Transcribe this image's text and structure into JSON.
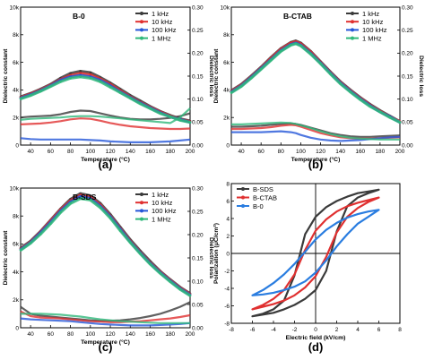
{
  "chart_data": [
    {
      "type": "line",
      "title": "B-0",
      "panel_label": "(a)",
      "xlabel": "Temperature (°C)",
      "ylabel": "Dielectric constant",
      "y2label": "Dielectric loss",
      "xlim": [
        30,
        200
      ],
      "ylim": [
        0,
        10000
      ],
      "y2lim": [
        0,
        0.3
      ],
      "x_ticks": [
        40,
        60,
        80,
        100,
        120,
        140,
        160,
        180,
        200
      ],
      "y_ticks": [
        "0",
        "2k",
        "4k",
        "6k",
        "8k",
        "10k"
      ],
      "y2_ticks": [
        "0.00",
        "0.05",
        "0.10",
        "0.15",
        "0.20",
        "0.25",
        "0.30"
      ],
      "legend_position": "top-right",
      "x": [
        30,
        40,
        50,
        60,
        70,
        80,
        90,
        100,
        110,
        120,
        130,
        140,
        150,
        160,
        170,
        180,
        190,
        200
      ],
      "series": [
        {
          "name": "1 kHz",
          "color": "#3a3a3a",
          "constant": [
            3500,
            3750,
            4050,
            4400,
            4850,
            5200,
            5350,
            5250,
            4900,
            4500,
            4050,
            3600,
            3200,
            2800,
            2450,
            2150,
            1900,
            1750
          ],
          "loss": [
            0.06,
            0.062,
            0.063,
            0.064,
            0.067,
            0.072,
            0.075,
            0.074,
            0.069,
            0.064,
            0.06,
            0.057,
            0.056,
            0.056,
            0.057,
            0.059,
            0.063,
            0.069
          ]
        },
        {
          "name": "10 kHz",
          "color": "#e03030",
          "constant": [
            3450,
            3700,
            4000,
            4350,
            4750,
            5050,
            5200,
            5100,
            4800,
            4400,
            3950,
            3500,
            3100,
            2750,
            2400,
            2100,
            1850,
            1700
          ],
          "loss": [
            0.045,
            0.046,
            0.047,
            0.049,
            0.052,
            0.056,
            0.058,
            0.057,
            0.053,
            0.048,
            0.044,
            0.041,
            0.039,
            0.037,
            0.036,
            0.035,
            0.035,
            0.036
          ]
        },
        {
          "name": "100 kHz",
          "color": "#2456d8",
          "constant": [
            3400,
            3650,
            3950,
            4300,
            4700,
            4950,
            5050,
            4950,
            4700,
            4300,
            3850,
            3450,
            3050,
            2700,
            2350,
            2050,
            1850,
            1650
          ],
          "loss": [
            0.015,
            0.013,
            0.012,
            0.012,
            0.012,
            0.012,
            0.012,
            0.011,
            0.01,
            0.008,
            0.007,
            0.006,
            0.006,
            0.006,
            0.007,
            0.008,
            0.01,
            0.012
          ]
        },
        {
          "name": "1 MHz",
          "color": "#2fb87a",
          "constant": [
            3350,
            3600,
            3900,
            4250,
            4600,
            4850,
            4950,
            4850,
            4600,
            4200,
            3800,
            3400,
            3000,
            2650,
            2300,
            2050,
            1800,
            1650
          ],
          "loss": [
            0.055,
            0.057,
            0.058,
            0.059,
            0.06,
            0.062,
            0.063,
            0.063,
            0.062,
            0.06,
            0.058,
            0.056,
            0.054,
            0.052,
            0.05,
            0.048,
            0.06,
            0.08
          ]
        }
      ]
    },
    {
      "type": "line",
      "title": "B-CTAB",
      "panel_label": "(b)",
      "xlabel": "Temperature (°C)",
      "ylabel": "Dielectric constant",
      "y2label": "Dielectric loss",
      "xlim": [
        30,
        200
      ],
      "ylim": [
        0,
        10000
      ],
      "y2lim": [
        0,
        0.3
      ],
      "x_ticks": [
        40,
        60,
        80,
        100,
        120,
        140,
        160,
        180,
        200
      ],
      "y_ticks": [
        "0",
        "2k",
        "4k",
        "6k",
        "8k",
        "10k"
      ],
      "y2_ticks": [
        "0.00",
        "0.05",
        "0.10",
        "0.15",
        "0.20",
        "0.25",
        "0.30"
      ],
      "legend_position": "top-right",
      "x": [
        30,
        40,
        50,
        60,
        70,
        80,
        90,
        95,
        100,
        110,
        120,
        130,
        140,
        150,
        160,
        170,
        180,
        190,
        200
      ],
      "series": [
        {
          "name": "1 kHz",
          "color": "#3a3a3a",
          "constant": [
            3950,
            4400,
            5000,
            5650,
            6350,
            7000,
            7450,
            7550,
            7400,
            6800,
            6050,
            5300,
            4600,
            4000,
            3450,
            2950,
            2500,
            2100,
            1700
          ],
          "loss": [
            0.04,
            0.04,
            0.041,
            0.042,
            0.044,
            0.046,
            0.047,
            0.046,
            0.044,
            0.038,
            0.032,
            0.026,
            0.022,
            0.019,
            0.018,
            0.018,
            0.019,
            0.02,
            0.021
          ]
        },
        {
          "name": "10 kHz",
          "color": "#e03030",
          "constant": [
            3900,
            4350,
            4950,
            5600,
            6300,
            6950,
            7400,
            7500,
            7350,
            6750,
            6000,
            5250,
            4550,
            3950,
            3400,
            2900,
            2450,
            2050,
            1700
          ],
          "loss": [
            0.035,
            0.035,
            0.036,
            0.037,
            0.039,
            0.042,
            0.044,
            0.043,
            0.04,
            0.033,
            0.026,
            0.021,
            0.017,
            0.015,
            0.014,
            0.014,
            0.015,
            0.016,
            0.017
          ]
        },
        {
          "name": "100 kHz",
          "color": "#2456d8",
          "constant": [
            3850,
            4300,
            4900,
            5550,
            6200,
            6850,
            7300,
            7400,
            7250,
            6650,
            5950,
            5200,
            4500,
            3900,
            3350,
            2850,
            2400,
            2050,
            1650
          ],
          "loss": [
            0.028,
            0.028,
            0.028,
            0.028,
            0.029,
            0.03,
            0.028,
            0.026,
            0.022,
            0.016,
            0.012,
            0.01,
            0.009,
            0.01,
            0.011,
            0.013,
            0.015,
            0.017,
            0.018
          ]
        },
        {
          "name": "1 MHz",
          "color": "#2fb87a",
          "constant": [
            3800,
            4250,
            4850,
            5500,
            6150,
            6800,
            7250,
            7350,
            7200,
            6600,
            5900,
            5150,
            4450,
            3850,
            3300,
            2800,
            2400,
            2000,
            1650
          ],
          "loss": [
            0.045,
            0.045,
            0.046,
            0.047,
            0.048,
            0.049,
            0.048,
            0.046,
            0.043,
            0.037,
            0.03,
            0.024,
            0.019,
            0.016,
            0.014,
            0.013,
            0.012,
            0.012,
            0.012
          ]
        }
      ]
    },
    {
      "type": "line",
      "title": "B-SDS",
      "panel_label": "(c)",
      "xlabel": "Temperature (°C)",
      "ylabel": "Dielectric constant",
      "y2label": "Dielectric loss",
      "xlim": [
        30,
        200
      ],
      "ylim": [
        0,
        10000
      ],
      "y2lim": [
        0,
        0.3
      ],
      "x_ticks": [
        40,
        60,
        80,
        100,
        120,
        140,
        160,
        180,
        200
      ],
      "y_ticks": [
        "0",
        "2k",
        "4k",
        "6k",
        "8k",
        "10k"
      ],
      "y2_ticks": [
        "0.00",
        "0.05",
        "0.10",
        "0.15",
        "0.20",
        "0.25",
        "0.30"
      ],
      "legend_position": "top-right",
      "x": [
        30,
        40,
        50,
        60,
        70,
        80,
        90,
        100,
        110,
        120,
        130,
        140,
        150,
        160,
        170,
        180,
        190,
        200
      ],
      "series": [
        {
          "name": "1 kHz",
          "color": "#3a3a3a",
          "constant": [
            5700,
            6200,
            6900,
            7700,
            8500,
            9200,
            9600,
            9450,
            8900,
            8100,
            7200,
            6300,
            5500,
            4750,
            4050,
            3450,
            2900,
            2450
          ],
          "loss": [
            0.045,
            0.03,
            0.026,
            0.024,
            0.022,
            0.02,
            0.018,
            0.016,
            0.015,
            0.015,
            0.016,
            0.018,
            0.021,
            0.025,
            0.03,
            0.037,
            0.045,
            0.055
          ]
        },
        {
          "name": "10 kHz",
          "color": "#e03030",
          "constant": [
            5650,
            6150,
            6850,
            7650,
            8450,
            9100,
            9500,
            9350,
            8800,
            8000,
            7100,
            6200,
            5400,
            4650,
            4000,
            3400,
            2850,
            2400
          ],
          "loss": [
            0.035,
            0.025,
            0.022,
            0.021,
            0.02,
            0.018,
            0.016,
            0.014,
            0.013,
            0.012,
            0.012,
            0.013,
            0.014,
            0.016,
            0.018,
            0.02,
            0.023,
            0.027
          ]
        },
        {
          "name": "100 kHz",
          "color": "#2456d8",
          "constant": [
            5600,
            6100,
            6800,
            7550,
            8350,
            9000,
            9400,
            9250,
            8700,
            7950,
            7050,
            6150,
            5350,
            4600,
            3950,
            3350,
            2800,
            2350
          ],
          "loss": [
            0.02,
            0.018,
            0.017,
            0.016,
            0.015,
            0.014,
            0.012,
            0.01,
            0.008,
            0.007,
            0.006,
            0.005,
            0.005,
            0.005,
            0.006,
            0.007,
            0.008,
            0.01
          ]
        },
        {
          "name": "1 MHz",
          "color": "#2fb87a",
          "constant": [
            5550,
            6050,
            6700,
            7450,
            8250,
            8900,
            9250,
            9150,
            8600,
            7850,
            6950,
            6100,
            5300,
            4550,
            3900,
            3300,
            2750,
            2300
          ],
          "loss": [
            0.03,
            0.03,
            0.03,
            0.029,
            0.028,
            0.026,
            0.024,
            0.021,
            0.018,
            0.016,
            0.014,
            0.013,
            0.012,
            0.011,
            0.01,
            0.01,
            0.01,
            0.01
          ]
        }
      ]
    },
    {
      "type": "line",
      "panel_label": "(d)",
      "xlabel": "Electric field (kV/cm)",
      "ylabel": "Polarization (μC/cm²)",
      "xlim": [
        -8,
        8
      ],
      "ylim": [
        -8,
        8
      ],
      "x_ticks": [
        -8,
        -6,
        -4,
        -2,
        0,
        2,
        4,
        6,
        8
      ],
      "y_ticks": [
        -8,
        -6,
        -4,
        -2,
        0,
        2,
        4,
        6,
        8
      ],
      "legend_position": "top-left",
      "series": [
        {
          "name": "B-SDS",
          "color": "#3a3a3a",
          "upper": {
            "x": [
              -6,
              -5,
              -4,
              -3,
              -2,
              -1,
              0,
              1,
              2,
              3,
              4,
              5,
              6
            ],
            "y": [
              -7.2,
              -6.9,
              -6.4,
              -5.4,
              -2.5,
              2.2,
              4.2,
              5.3,
              6.0,
              6.5,
              6.9,
              7.1,
              7.3
            ]
          },
          "lower": {
            "x": [
              -6,
              -5,
              -4,
              -3,
              -2,
              -1,
              0,
              1,
              2,
              3,
              4,
              5,
              6
            ],
            "y": [
              -7.2,
              -7.0,
              -6.8,
              -6.4,
              -5.9,
              -5.2,
              -4.2,
              -2.0,
              2.5,
              5.4,
              6.4,
              6.9,
              7.3
            ]
          }
        },
        {
          "name": "B-CTAB",
          "color": "#e03030",
          "upper": {
            "x": [
              -6,
              -5,
              -4,
              -3,
              -2,
              -1,
              0,
              1,
              2,
              3,
              4,
              5,
              6
            ],
            "y": [
              -6.4,
              -5.9,
              -5.2,
              -4.2,
              -2.4,
              0.4,
              2.6,
              3.9,
              4.8,
              5.4,
              5.8,
              6.1,
              6.4
            ]
          },
          "lower": {
            "x": [
              -6,
              -5,
              -4,
              -3,
              -2,
              -1,
              0,
              1,
              2,
              3,
              4,
              5,
              6
            ],
            "y": [
              -6.4,
              -6.1,
              -5.8,
              -5.4,
              -4.8,
              -3.9,
              -2.6,
              -0.4,
              2.4,
              4.2,
              5.2,
              5.9,
              6.4
            ]
          }
        },
        {
          "name": "B-0",
          "color": "#2a7de0",
          "upper": {
            "x": [
              -6,
              -5,
              -4,
              -3,
              -2,
              -1,
              0,
              1,
              2,
              3,
              4,
              5,
              6
            ],
            "y": [
              -4.8,
              -4.2,
              -3.4,
              -2.4,
              -1.2,
              0.2,
              1.6,
              2.7,
              3.5,
              4.1,
              4.5,
              4.8,
              5.0
            ]
          },
          "lower": {
            "x": [
              -6,
              -5,
              -4,
              -3,
              -2,
              -1,
              0,
              1,
              2,
              3,
              4,
              5,
              6
            ],
            "y": [
              -4.8,
              -4.7,
              -4.5,
              -4.2,
              -3.8,
              -3.2,
              -2.2,
              -0.8,
              0.8,
              2.2,
              3.4,
              4.2,
              5.0
            ]
          }
        }
      ]
    }
  ]
}
